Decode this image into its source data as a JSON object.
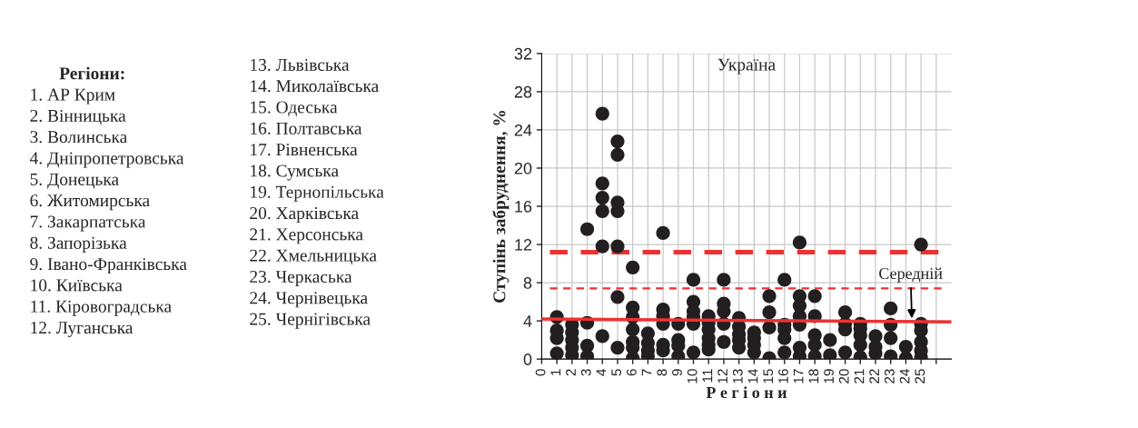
{
  "chart_data": {
    "type": "scatter",
    "title": "Україна",
    "xlabel": "Р е г і о н и",
    "ylabel": "Ступінь забруднення, %",
    "xlim": [
      0,
      27
    ],
    "ylim": [
      0,
      32
    ],
    "xticks": [
      0,
      1,
      2,
      3,
      4,
      5,
      6,
      7,
      8,
      9,
      10,
      11,
      12,
      13,
      14,
      15,
      16,
      17,
      18,
      19,
      20,
      21,
      22,
      23,
      24,
      25,
      {
        "value": 26,
        "label": null
      }
    ],
    "yticks": [
      0,
      4,
      8,
      12,
      16,
      20,
      24,
      28,
      32
    ],
    "grid": true,
    "marker": "circle",
    "legend": false,
    "series": [
      {
        "color": "#231f20",
        "x": [
          1,
          1,
          1,
          1,
          2,
          2,
          2,
          2,
          2,
          3,
          3,
          3,
          3,
          4,
          4,
          4,
          4,
          4,
          4,
          5,
          5,
          5,
          5,
          5,
          5,
          5,
          6,
          6,
          6,
          6,
          6,
          6,
          6,
          7,
          7,
          7,
          7,
          8,
          8,
          8,
          8,
          8,
          8,
          9,
          9,
          9,
          9,
          10,
          10,
          10,
          10,
          10,
          10,
          11,
          11,
          11,
          11,
          11,
          11,
          12,
          12,
          12,
          12,
          12,
          13,
          13,
          13,
          13,
          13,
          14,
          14,
          14,
          14,
          15,
          15,
          15,
          15,
          16,
          16,
          16,
          16,
          16,
          17,
          17,
          17,
          17,
          17,
          17,
          17,
          18,
          18,
          18,
          18,
          18,
          19,
          19,
          20,
          20,
          20,
          20,
          21,
          21,
          21,
          21,
          21,
          22,
          22,
          22,
          23,
          23,
          23,
          23,
          24,
          24,
          25,
          25,
          25,
          25,
          25,
          25
        ],
        "values": [
          4.4,
          3.0,
          2.2,
          0.6,
          3.6,
          2.8,
          2.0,
          1.2,
          0.4,
          13.6,
          3.8,
          1.4,
          0.3,
          25.7,
          18.4,
          16.9,
          15.5,
          11.8,
          2.4,
          22.8,
          21.4,
          16.4,
          15.5,
          11.8,
          6.5,
          1.2,
          9.6,
          5.4,
          4.4,
          3.1,
          1.8,
          1.2,
          0.1,
          2.7,
          1.7,
          0.9,
          0.3,
          13.2,
          5.2,
          4.5,
          3.7,
          1.5,
          0.9,
          3.7,
          2.0,
          1.4,
          0.3,
          8.3,
          6.0,
          5.0,
          4.4,
          3.7,
          0.7,
          4.5,
          3.8,
          3.1,
          2.2,
          1.5,
          1.0,
          8.3,
          5.8,
          5.0,
          3.7,
          1.8,
          4.3,
          3.4,
          2.6,
          2.0,
          1.2,
          2.8,
          2.2,
          1.5,
          0.7,
          6.6,
          4.9,
          3.3,
          0.1,
          8.3,
          3.6,
          3.1,
          2.2,
          0.7,
          12.2,
          6.6,
          5.6,
          4.5,
          3.6,
          1.2,
          0.3,
          6.6,
          4.5,
          2.5,
          1.5,
          0.3,
          2.0,
          0.4,
          4.9,
          3.7,
          3.1,
          0.7,
          3.7,
          3.2,
          2.5,
          1.5,
          0.2,
          2.4,
          1.3,
          0.6,
          5.3,
          3.6,
          2.2,
          0.3,
          1.3,
          0.1,
          12.0,
          3.7,
          3.0,
          1.8,
          0.9,
          0.2
        ]
      },
      {
        "type": "line",
        "color": "#ee3131",
        "x": [
          0,
          27
        ],
        "values": [
          4.2,
          3.9
        ],
        "marker": "none",
        "line_style": "solid"
      }
    ],
    "ref_lines": [
      {
        "axis": "y",
        "value": 11.2,
        "color": "#ee3131",
        "line_style": "dashed"
      },
      {
        "axis": "y",
        "value": 7.4,
        "color": "#ee3131",
        "line_style": "dashed"
      }
    ],
    "annotations": [
      "Регіони:",
      "1. АР Крим",
      "2. Вінницька",
      "3. Волинська",
      "4. Дніпропетровська",
      "5. Донецька",
      "6. Житомирська",
      "7. Закарпатська",
      "8. Запорізька",
      "9. Івано-Франківська",
      "10. Київська",
      "11. Кіровоградська",
      "12. Луганська",
      "13. Львівська",
      "14. Миколаївська",
      "15. Одеська",
      "16. Полтавська",
      "17. Рівненська",
      "18. Сумська",
      "19. Тернопільська",
      "20. Харківська",
      "21. Херсонська",
      "22. Хмельницька",
      "23. Черкаська",
      "24. Чернівецька",
      "25. Чернігівська",
      {
        "text": "Середній",
        "x": 24.4,
        "y": 4.0
      }
    ]
  }
}
